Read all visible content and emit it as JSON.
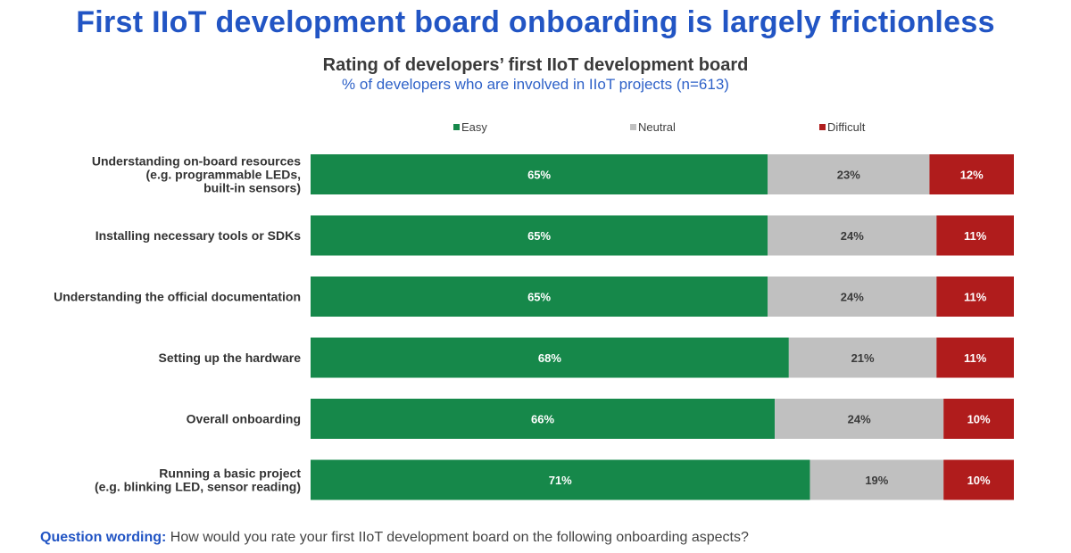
{
  "header": {
    "title": "First IIoT development board onboarding is largely frictionless"
  },
  "chart_data": {
    "type": "bar",
    "orientation": "horizontal",
    "stacked": true,
    "title": "Rating of developers’ first IIoT development board",
    "subtitle": "% of developers who are involved in IIoT projects (n=613)",
    "value_suffix": "%",
    "legend_position": "top",
    "categories": [
      [
        "Understanding on-board resources",
        "(e.g. programmable LEDs,",
        "built-in sensors)"
      ],
      [
        "Installing necessary tools or SDKs"
      ],
      [
        "Understanding the official documentation"
      ],
      [
        "Setting up the hardware"
      ],
      [
        "Overall onboarding"
      ],
      [
        "Running a basic project",
        "(e.g. blinking LED, sensor reading)"
      ]
    ],
    "series": [
      {
        "name": "Easy",
        "color": "#16884a",
        "label_color": "#ffffff",
        "values": [
          65,
          65,
          65,
          68,
          66,
          71
        ]
      },
      {
        "name": "Neutral",
        "color": "#c0c0c0",
        "label_color": "#3a3a3a",
        "values": [
          23,
          24,
          24,
          21,
          24,
          19
        ]
      },
      {
        "name": "Difficult",
        "color": "#b01c1c",
        "label_color": "#ffffff",
        "values": [
          12,
          11,
          11,
          11,
          10,
          10
        ]
      }
    ]
  },
  "footer": {
    "label": "Question wording:",
    "text": " How would you rate your first IIoT development board on the following onboarding aspects?"
  }
}
